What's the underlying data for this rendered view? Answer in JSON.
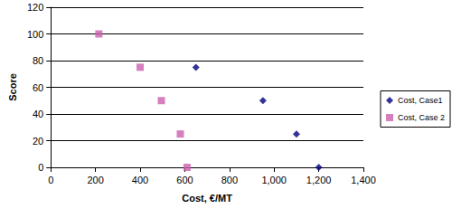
{
  "chart_data": {
    "type": "scatter",
    "x_label": "Cost, €/MT",
    "y_label": "Score",
    "series": [
      {
        "name": "Cost, Case1",
        "color": "#000080",
        "marker": "diamond",
        "x": [
          650,
          950,
          1100,
          1200
        ],
        "values": [
          75,
          50,
          25,
          0
        ]
      },
      {
        "name": "Cost, Case 2",
        "color": "#cc5fae",
        "marker": "square",
        "x": [
          215,
          400,
          495,
          580,
          610
        ],
        "values": [
          100,
          75,
          50,
          25,
          0
        ]
      }
    ],
    "xlim": [
      0,
      1400
    ],
    "xticks": [
      0,
      200,
      400,
      600,
      800,
      1000,
      1200,
      1400
    ],
    "ylim": [
      0,
      120
    ],
    "yticks": [
      0,
      20,
      40,
      60,
      80,
      100,
      120
    ],
    "grid": true,
    "legend": "right"
  }
}
